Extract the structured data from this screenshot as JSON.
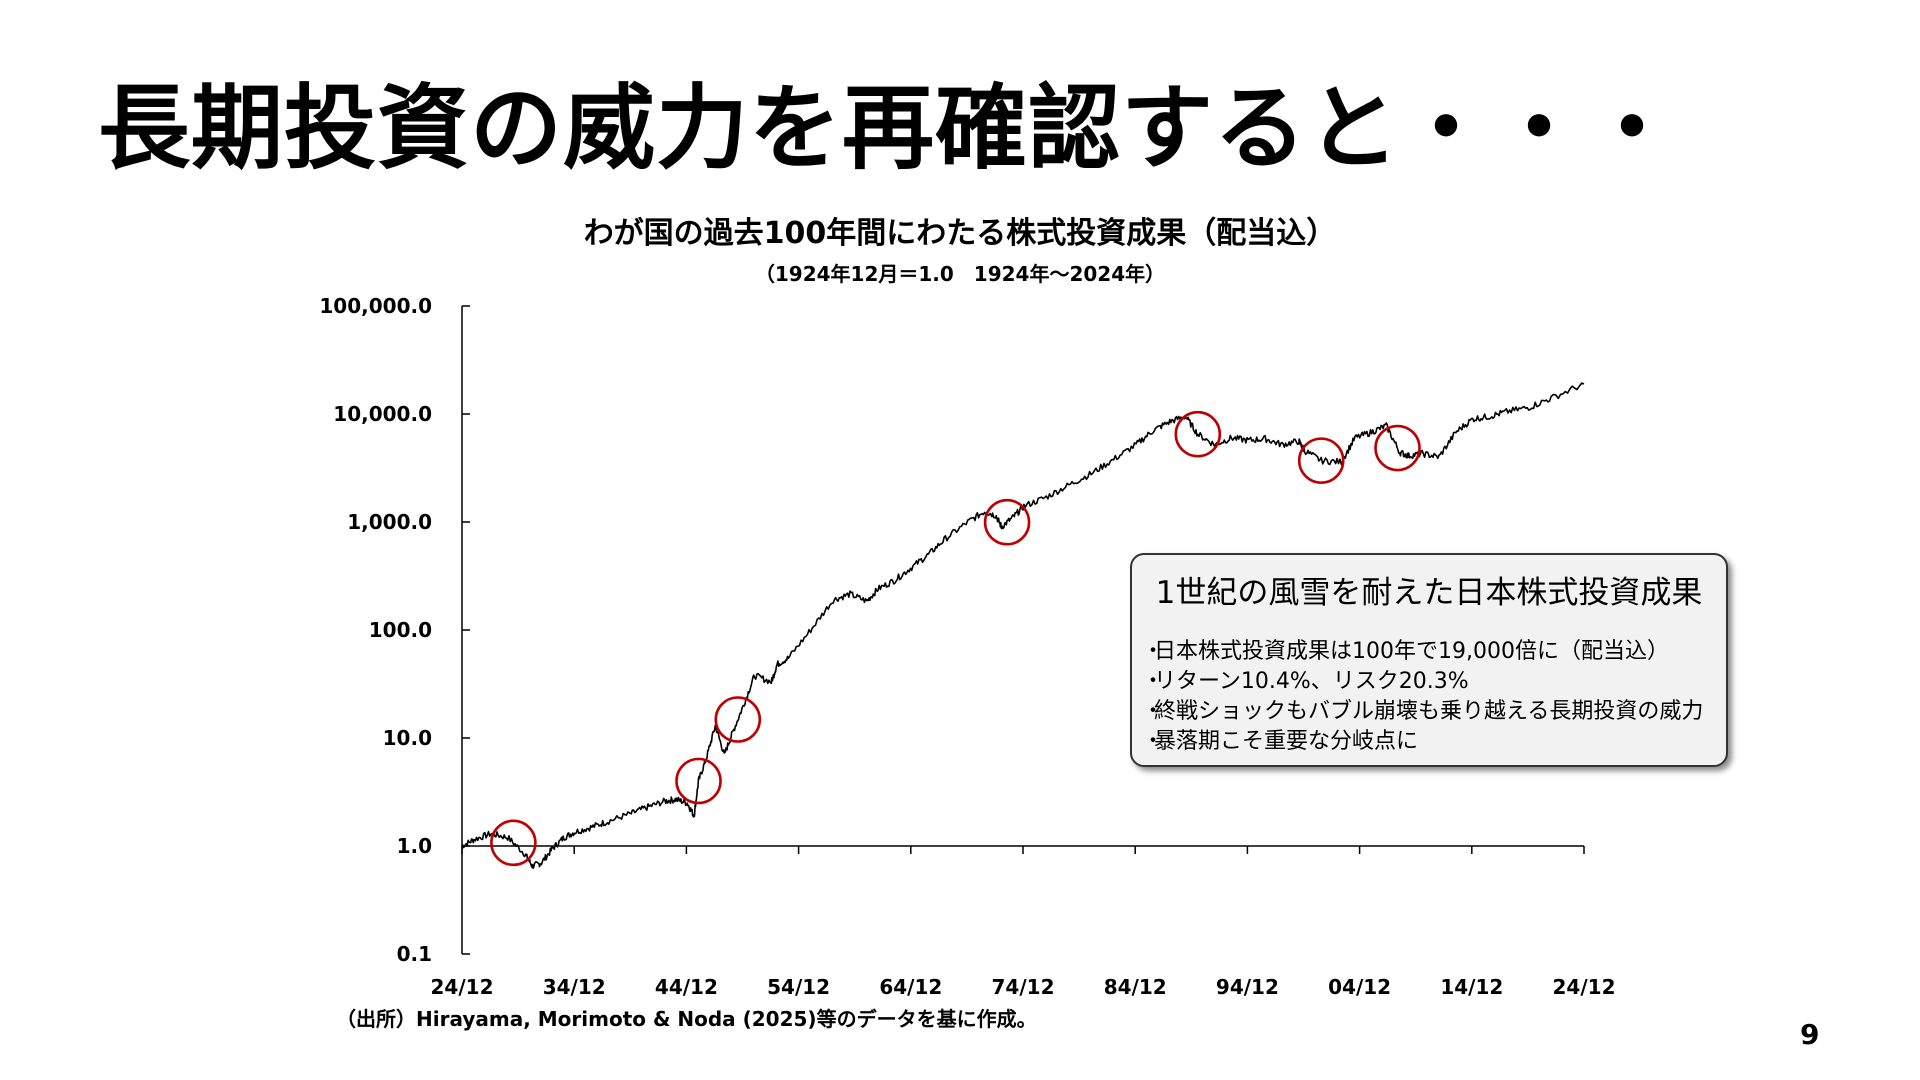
{
  "slide": {
    "title": "長期投資の威力を再確認すると・・・",
    "page_number": "9",
    "source": "（出所）Hirayama, Morimoto & Noda (2025)等のデータを基に作成。"
  },
  "chart_data": {
    "type": "line",
    "title": "わが国の過去100年間にわたる株式投資成果（配当込）",
    "subtitle": "（1924年12月＝1.0　1924年～2024年）",
    "y_scale": "log",
    "ylim": [
      0.1,
      100000
    ],
    "y_ticks": [
      "100,000.0",
      "10,000.0",
      "1,000.0",
      "100.0",
      "10.0",
      "1.0",
      "0.1"
    ],
    "x_ticks": [
      "24/12",
      "34/12",
      "44/12",
      "54/12",
      "64/12",
      "74/12",
      "84/12",
      "94/12",
      "04/12",
      "14/12",
      "24/12"
    ],
    "xlim": [
      1924.92,
      2024.92
    ],
    "series": [
      {
        "x": [
          1924.92,
          1926,
          1927.5,
          1929,
          1930.5,
          1931.2,
          1932,
          1933,
          1934,
          1935,
          1936.5,
          1938,
          1940,
          1941.5,
          1943,
          1944,
          1945,
          1945.6,
          1946,
          1946.7,
          1947.5,
          1948.3,
          1949,
          1950,
          1951,
          1952.5,
          1953,
          1954,
          1956,
          1958,
          1959.5,
          1961,
          1962,
          1963.5,
          1965,
          1966.5,
          1968,
          1970,
          1971.5,
          1972.5,
          1973,
          1974,
          1975,
          1977,
          1979,
          1981,
          1983,
          1985,
          1986.5,
          1988,
          1989.4,
          1990.5,
          1992,
          1993.5,
          1995,
          1996.5,
          1998,
          1999.5,
          2000,
          2001.5,
          2003.3,
          2004.5,
          2006,
          2007.3,
          2008.5,
          2009.3,
          2010.5,
          2012,
          2013.5,
          2015,
          2016.5,
          2018,
          2020,
          2022,
          2024.92
        ],
        "y": [
          1.0,
          1.15,
          1.3,
          1.2,
          0.85,
          0.65,
          0.7,
          0.95,
          1.2,
          1.35,
          1.5,
          1.7,
          2.0,
          2.3,
          2.6,
          2.7,
          2.5,
          1.9,
          4.0,
          6.5,
          13.0,
          7.0,
          11.0,
          20.0,
          38.0,
          33.0,
          48.0,
          55.0,
          100.0,
          190.0,
          215.0,
          185.0,
          240.0,
          290.0,
          380.0,
          500.0,
          700.0,
          1000.0,
          1250.0,
          1150.0,
          900.0,
          1100.0,
          1400.0,
          1700.0,
          2200.0,
          2800.0,
          3800.0,
          5200.0,
          7000.0,
          8500.0,
          9500.0,
          6500.0,
          5200.0,
          6000.0,
          5700.0,
          5900.0,
          5200.0,
          5600.0,
          4600.0,
          3700.0,
          3600.0,
          6000.0,
          6800.0,
          7800.0,
          4400.0,
          4100.0,
          4300.0,
          4000.0,
          6800.0,
          9000.0,
          9500.0,
          10500.0,
          11500.0,
          14000.0,
          19000.0
        ]
      }
    ],
    "highlight_circles_x": [
      1929.5,
      1946,
      1949.5,
      1973.5,
      1990.5,
      2001.5,
      2008.3
    ],
    "colors": {
      "line": "#000000",
      "circle": "#c00000",
      "axis": "#000000"
    }
  },
  "callout": {
    "title": "1世紀の風雪を耐えた日本株式投資成果",
    "bullet": "・",
    "items": [
      "日本株式投資成果は100年で19,000倍に（配当込）",
      "リターン10.4%、リスク20.3%",
      "終戦ショックもバブル崩壊も乗り越える長期投資の威力",
      "暴落期こそ重要な分岐点に"
    ]
  }
}
